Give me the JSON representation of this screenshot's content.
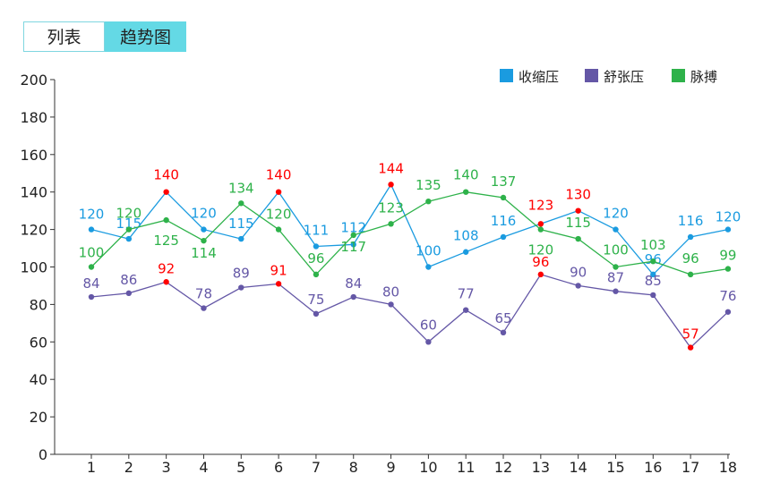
{
  "tabs": [
    {
      "label": "列表",
      "active": false
    },
    {
      "label": "趋势图",
      "active": true
    }
  ],
  "chart_data": {
    "type": "line",
    "x": [
      1,
      2,
      3,
      4,
      5,
      6,
      7,
      8,
      9,
      10,
      11,
      12,
      13,
      14,
      15,
      16,
      17,
      18
    ],
    "ylim": [
      0,
      200
    ],
    "yticks": [
      0,
      20,
      40,
      60,
      80,
      100,
      120,
      140,
      160,
      180,
      200
    ],
    "grid": false,
    "legend_position": "top-right",
    "abnormal_color": "#ff0000",
    "series": [
      {
        "name": "收缩压",
        "color": "#1a9be0",
        "values": [
          120,
          115,
          140,
          120,
          115,
          140,
          111,
          112,
          144,
          100,
          108,
          116,
          123,
          130,
          120,
          96,
          116,
          120
        ],
        "abnormal": [
          false,
          false,
          true,
          false,
          false,
          true,
          false,
          false,
          true,
          false,
          false,
          false,
          true,
          true,
          false,
          false,
          false,
          false
        ]
      },
      {
        "name": "舒张压",
        "color": "#6457a6",
        "values": [
          84,
          86,
          92,
          78,
          89,
          91,
          75,
          84,
          80,
          60,
          77,
          65,
          96,
          90,
          87,
          85,
          57,
          76
        ],
        "abnormal": [
          false,
          false,
          true,
          false,
          false,
          true,
          false,
          false,
          false,
          false,
          false,
          false,
          true,
          false,
          false,
          false,
          true,
          false
        ]
      },
      {
        "name": "脉搏",
        "color": "#2eb24a",
        "values": [
          100,
          120,
          125,
          114,
          134,
          120,
          96,
          117,
          123,
          135,
          140,
          137,
          120,
          115,
          100,
          103,
          96,
          99
        ],
        "abnormal": [
          false,
          false,
          false,
          false,
          false,
          false,
          false,
          false,
          false,
          false,
          false,
          false,
          false,
          false,
          false,
          false,
          false,
          false
        ]
      }
    ]
  }
}
